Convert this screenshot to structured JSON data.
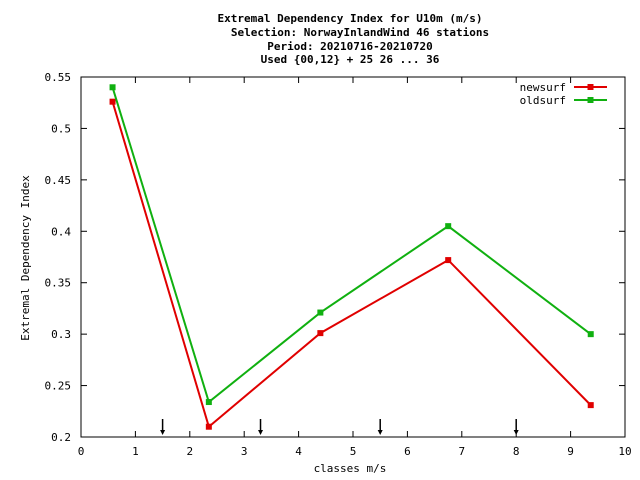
{
  "chart_data": {
    "type": "line",
    "title_lines": [
      "Extremal Dependency Index  for U10m (m/s)",
      "Selection: NorwayInlandWind     46 stations",
      "Period: 20210716-20210720",
      "Used {00,12} + 25 26 ... 36"
    ],
    "xlabel": "classes m/s",
    "ylabel": "Extremal Dependency Index",
    "xlim": [
      0,
      10
    ],
    "ylim": [
      0.2,
      0.55
    ],
    "x_ticks": [
      "0",
      "1",
      "2",
      "3",
      "4",
      "5",
      "6",
      "7",
      "8",
      "9",
      "10"
    ],
    "y_ticks": [
      "0.2",
      "0.25",
      "0.3",
      "0.35",
      "0.4",
      "0.45",
      "0.5",
      "0.55"
    ],
    "legend_position": "top-right",
    "grid": false,
    "class_limit_arrows_x": [
      1.5,
      3.3,
      5.5,
      8.0
    ],
    "series": [
      {
        "name": "newsurf",
        "color": "#e00000",
        "x": [
          0.58,
          2.35,
          4.4,
          6.75,
          9.37
        ],
        "y": [
          0.526,
          0.21,
          0.301,
          0.372,
          0.231
        ]
      },
      {
        "name": "oldsurf",
        "color": "#10b010",
        "x": [
          0.58,
          2.35,
          4.4,
          6.75,
          9.37
        ],
        "y": [
          0.54,
          0.234,
          0.321,
          0.405,
          0.3
        ]
      }
    ]
  }
}
